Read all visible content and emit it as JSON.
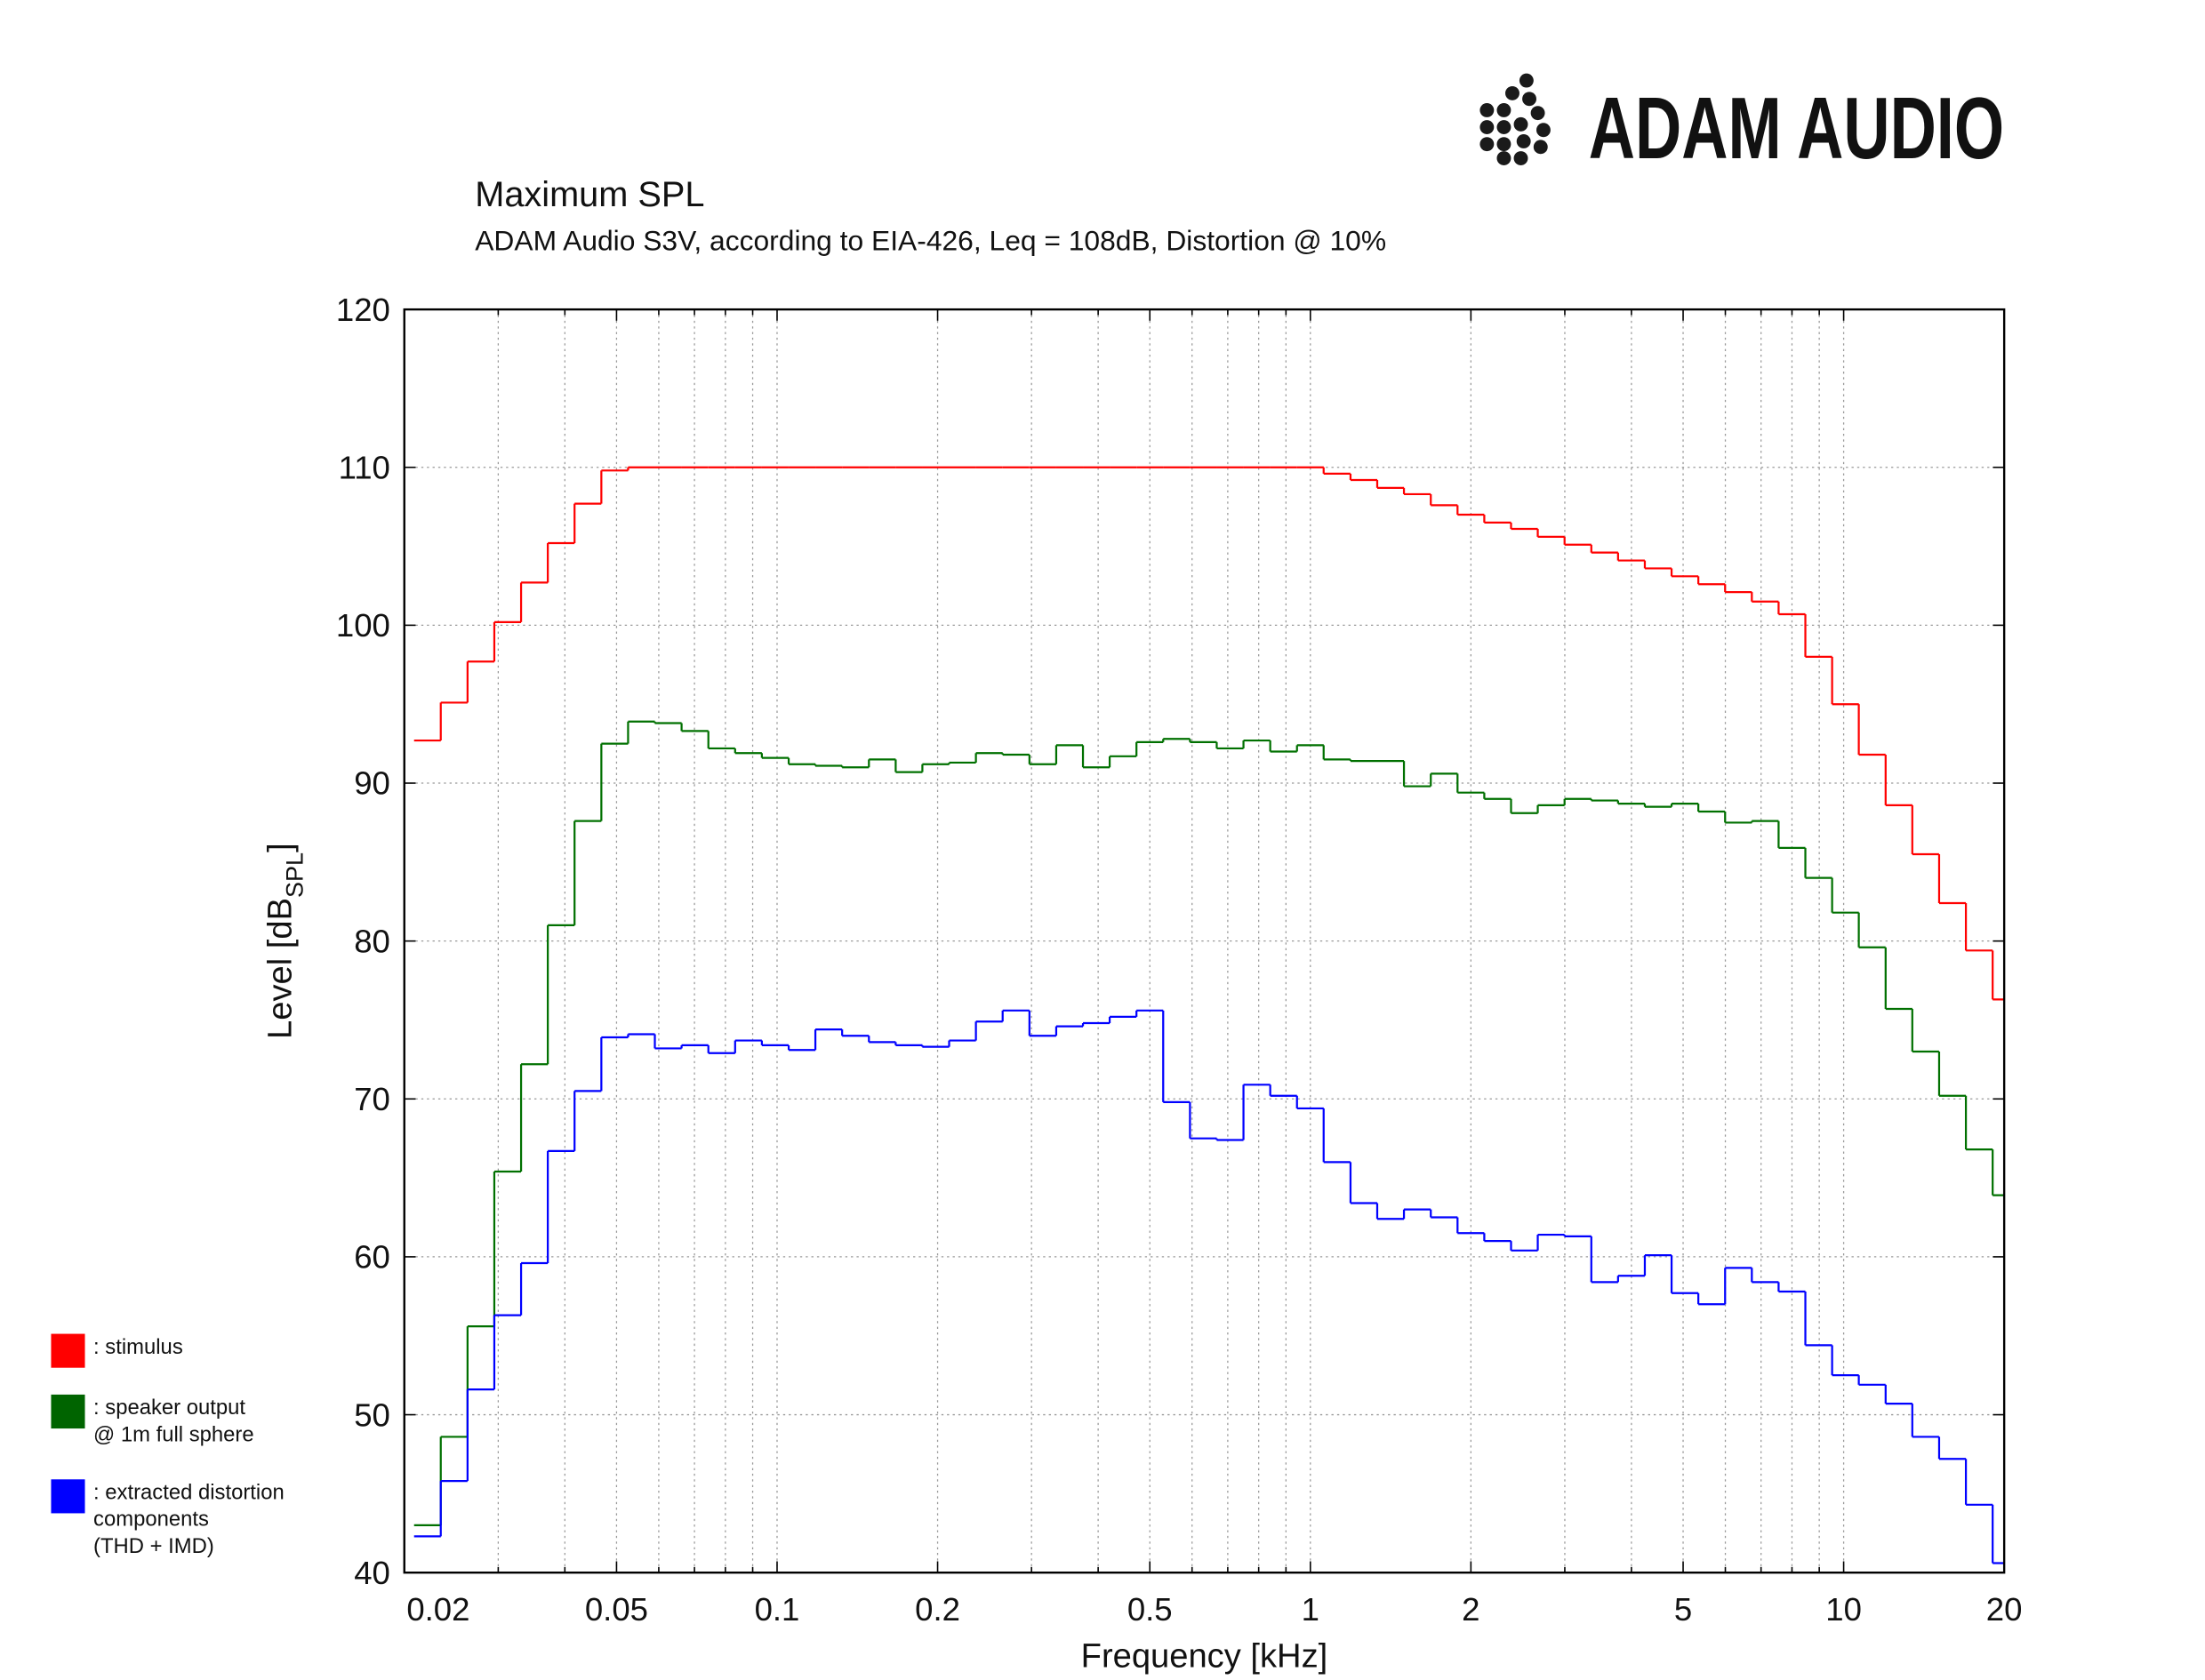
{
  "logo": "ADAM AUDIO",
  "chart_data": {
    "type": "step",
    "title": "Maximum SPL",
    "subtitle": "ADAM Audio S3V, according to EIA-426, Leq = 108dB, Distortion @ 10%",
    "xlabel": "Frequency [kHz]",
    "ylabel": [
      "Level [dB",
      "SPL",
      "]"
    ],
    "xscale": "log",
    "xlim": [
      0.02,
      20
    ],
    "ylim": [
      40,
      120
    ],
    "xticks": [
      0.02,
      0.05,
      0.1,
      0.2,
      0.5,
      1,
      2,
      5,
      10,
      20
    ],
    "xminorticks": [
      0.03,
      0.04,
      0.06,
      0.07,
      0.08,
      0.09,
      0.3,
      0.4,
      0.6,
      0.7,
      0.8,
      0.9,
      3,
      4,
      6,
      7,
      8,
      9
    ],
    "yticks": [
      40,
      50,
      60,
      70,
      80,
      90,
      100,
      110,
      120
    ],
    "grid": true,
    "x": [
      0.0221,
      0.0248,
      0.02784,
      0.03125,
      0.03508,
      0.03937,
      0.04419,
      0.04961,
      0.05568,
      0.0625,
      0.07015,
      0.07875,
      0.08839,
      0.09921,
      0.1114,
      0.125,
      0.1403,
      0.1575,
      0.1768,
      0.1984,
      0.2227,
      0.25,
      0.2806,
      0.315,
      0.3536,
      0.3969,
      0.4454,
      0.5,
      0.5612,
      0.63,
      0.7071,
      0.7937,
      0.8909,
      1,
      1.122,
      1.26,
      1.414,
      1.587,
      1.782,
      2,
      2.245,
      2.52,
      2.828,
      3.175,
      3.564,
      4,
      4.49,
      5.04,
      5.657,
      6.35,
      7.127,
      8,
      8.98,
      10.08,
      11.31,
      12.7,
      14.25,
      16,
      17.96,
      20.16
    ],
    "series": [
      {
        "name": ": stimulus",
        "color": "#ff0000",
        "legend_color": "#ff0000",
        "values": [
          92.7,
          95.1,
          97.7,
          100.2,
          102.7,
          105.2,
          107.7,
          109.8,
          110,
          110,
          110,
          110,
          110,
          110,
          110,
          110,
          110,
          110,
          110,
          110,
          110,
          110,
          110,
          110,
          110,
          110,
          110,
          110,
          110,
          110,
          110,
          110,
          110,
          110,
          109.6,
          109.2,
          108.7,
          108.3,
          107.6,
          107.0,
          106.5,
          106.1,
          105.6,
          105.1,
          104.6,
          104.1,
          103.6,
          103.1,
          102.6,
          102.1,
          101.5,
          100.7,
          98.0,
          95.0,
          91.8,
          88.6,
          85.5,
          82.4,
          79.4,
          76.3
        ]
      },
      {
        "name": ": speaker output\n@ 1m full sphere",
        "color": "#007000",
        "legend_color": "#006400",
        "values": [
          43,
          48.6,
          55.6,
          65.4,
          72.2,
          81.0,
          87.6,
          92.5,
          93.9,
          93.8,
          93.3,
          92.2,
          91.9,
          91.6,
          91.2,
          91.1,
          91.0,
          91.5,
          90.7,
          91.2,
          91.3,
          91.9,
          91.8,
          91.2,
          92.4,
          91.0,
          91.7,
          92.6,
          92.8,
          92.6,
          92.2,
          92.7,
          92.0,
          92.4,
          91.5,
          91.4,
          91.4,
          89.8,
          90.6,
          89.4,
          89.0,
          88.1,
          88.6,
          89.0,
          88.9,
          88.7,
          88.5,
          88.7,
          88.2,
          87.5,
          87.6,
          85.9,
          84.0,
          81.8,
          79.6,
          75.7,
          73.0,
          70.2,
          66.8,
          63.9
        ]
      },
      {
        "name": ": extracted distortion\ncomponents\n(THD + IMD)",
        "color": "#0000ff",
        "legend_color": "#0000ff",
        "values": [
          42.3,
          45.8,
          51.6,
          56.3,
          59.6,
          66.7,
          70.5,
          73.9,
          74.1,
          73.2,
          73.4,
          72.9,
          73.7,
          73.4,
          73.1,
          74.4,
          74.0,
          73.6,
          73.4,
          73.3,
          73.7,
          74.9,
          75.6,
          74.0,
          74.6,
          74.8,
          75.2,
          75.6,
          69.8,
          67.5,
          67.4,
          70.9,
          70.2,
          69.4,
          66.0,
          63.4,
          62.4,
          63.0,
          62.5,
          61.5,
          61.0,
          60.4,
          61.4,
          61.3,
          58.4,
          58.8,
          60.1,
          57.7,
          57.0,
          59.3,
          58.4,
          57.8,
          54.4,
          52.5,
          51.9,
          50.7,
          48.6,
          47.2,
          44.3,
          40.6
        ]
      }
    ]
  }
}
